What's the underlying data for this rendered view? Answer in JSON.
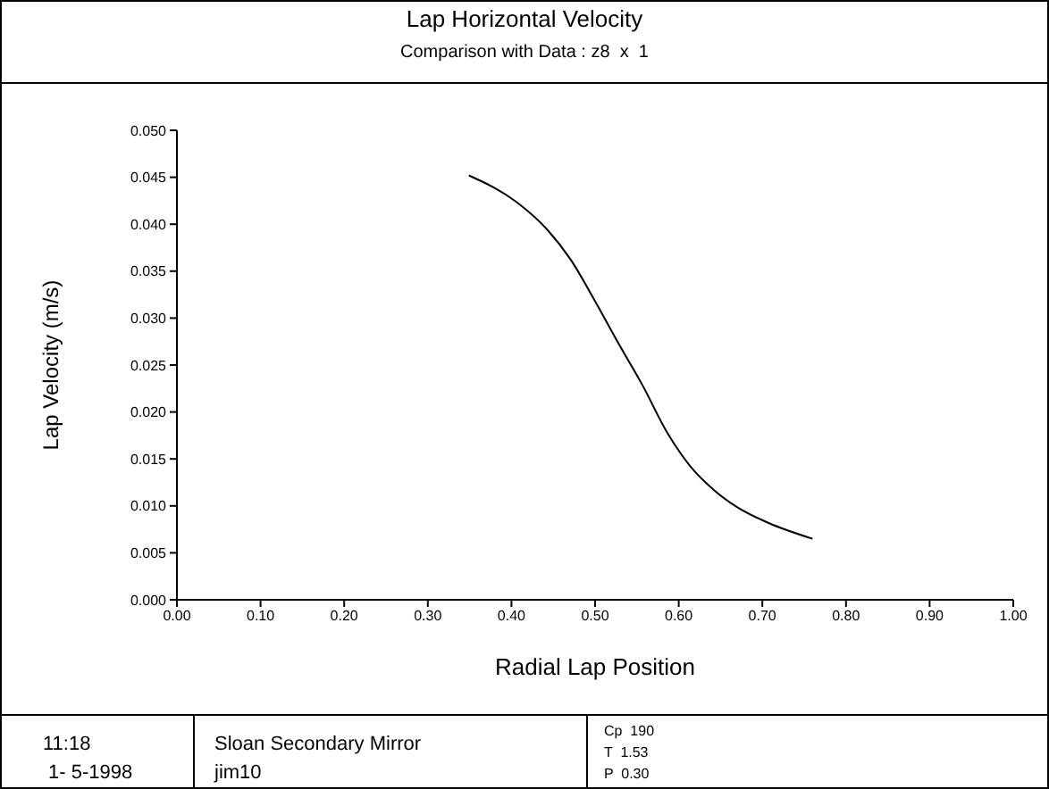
{
  "chart_data": {
    "type": "line",
    "title": "Lap Horizontal Velocity",
    "subtitle": "Comparison with Data : z8  x  1",
    "xlabel": "Radial Lap Position",
    "ylabel": "Lap Velocity  (m/s)",
    "x": [
      0.349,
      0.407,
      0.443,
      0.471,
      0.5,
      0.528,
      0.557,
      0.585,
      0.614,
      0.642,
      0.671,
      0.707,
      0.76
    ],
    "series": [
      {
        "color": "#000000",
        "values": [
          0.0452,
          0.0423,
          0.0394,
          0.0362,
          0.0318,
          0.0273,
          0.0228,
          0.018,
          0.0142,
          0.0117,
          0.0098,
          0.0082,
          0.0065
        ]
      }
    ],
    "xlim": [
      0,
      1
    ],
    "xticks": [
      {
        "value": 0,
        "label": "0.00"
      },
      {
        "value": 0.1,
        "label": "0.10"
      },
      {
        "value": 0.2,
        "label": "0.20"
      },
      {
        "value": 0.3,
        "label": "0.30"
      },
      {
        "value": 0.4,
        "label": "0.40"
      },
      {
        "value": 0.5,
        "label": "0.50"
      },
      {
        "value": 0.6,
        "label": "0.60"
      },
      {
        "value": 0.7,
        "label": "0.70"
      },
      {
        "value": 0.8,
        "label": "0.80"
      },
      {
        "value": 0.9,
        "label": "0.90"
      },
      {
        "value": 1,
        "label": "1.00"
      }
    ],
    "ylim": [
      0,
      0.05
    ],
    "yticks": [
      {
        "value": 0,
        "label": "0.000"
      },
      {
        "value": 0.005,
        "label": "0.005"
      },
      {
        "value": 0.01,
        "label": "0.010"
      },
      {
        "value": 0.015,
        "label": "0.015"
      },
      {
        "value": 0.02,
        "label": "0.020"
      },
      {
        "value": 0.025,
        "label": "0.025"
      },
      {
        "value": 0.03,
        "label": "0.030"
      },
      {
        "value": 0.035,
        "label": "0.035"
      },
      {
        "value": 0.04,
        "label": "0.040"
      },
      {
        "value": 0.045,
        "label": "0.045"
      },
      {
        "value": 0.05,
        "label": "0.050"
      }
    ],
    "grid": false,
    "legend": false,
    "marker": "none",
    "line_style": "solid",
    "annotations": [
      "11:18",
      " 1- 5-1998",
      "Sloan Secondary Mirror",
      "jim10",
      "Cp  190",
      "T  1.53",
      "P  0.30"
    ]
  }
}
